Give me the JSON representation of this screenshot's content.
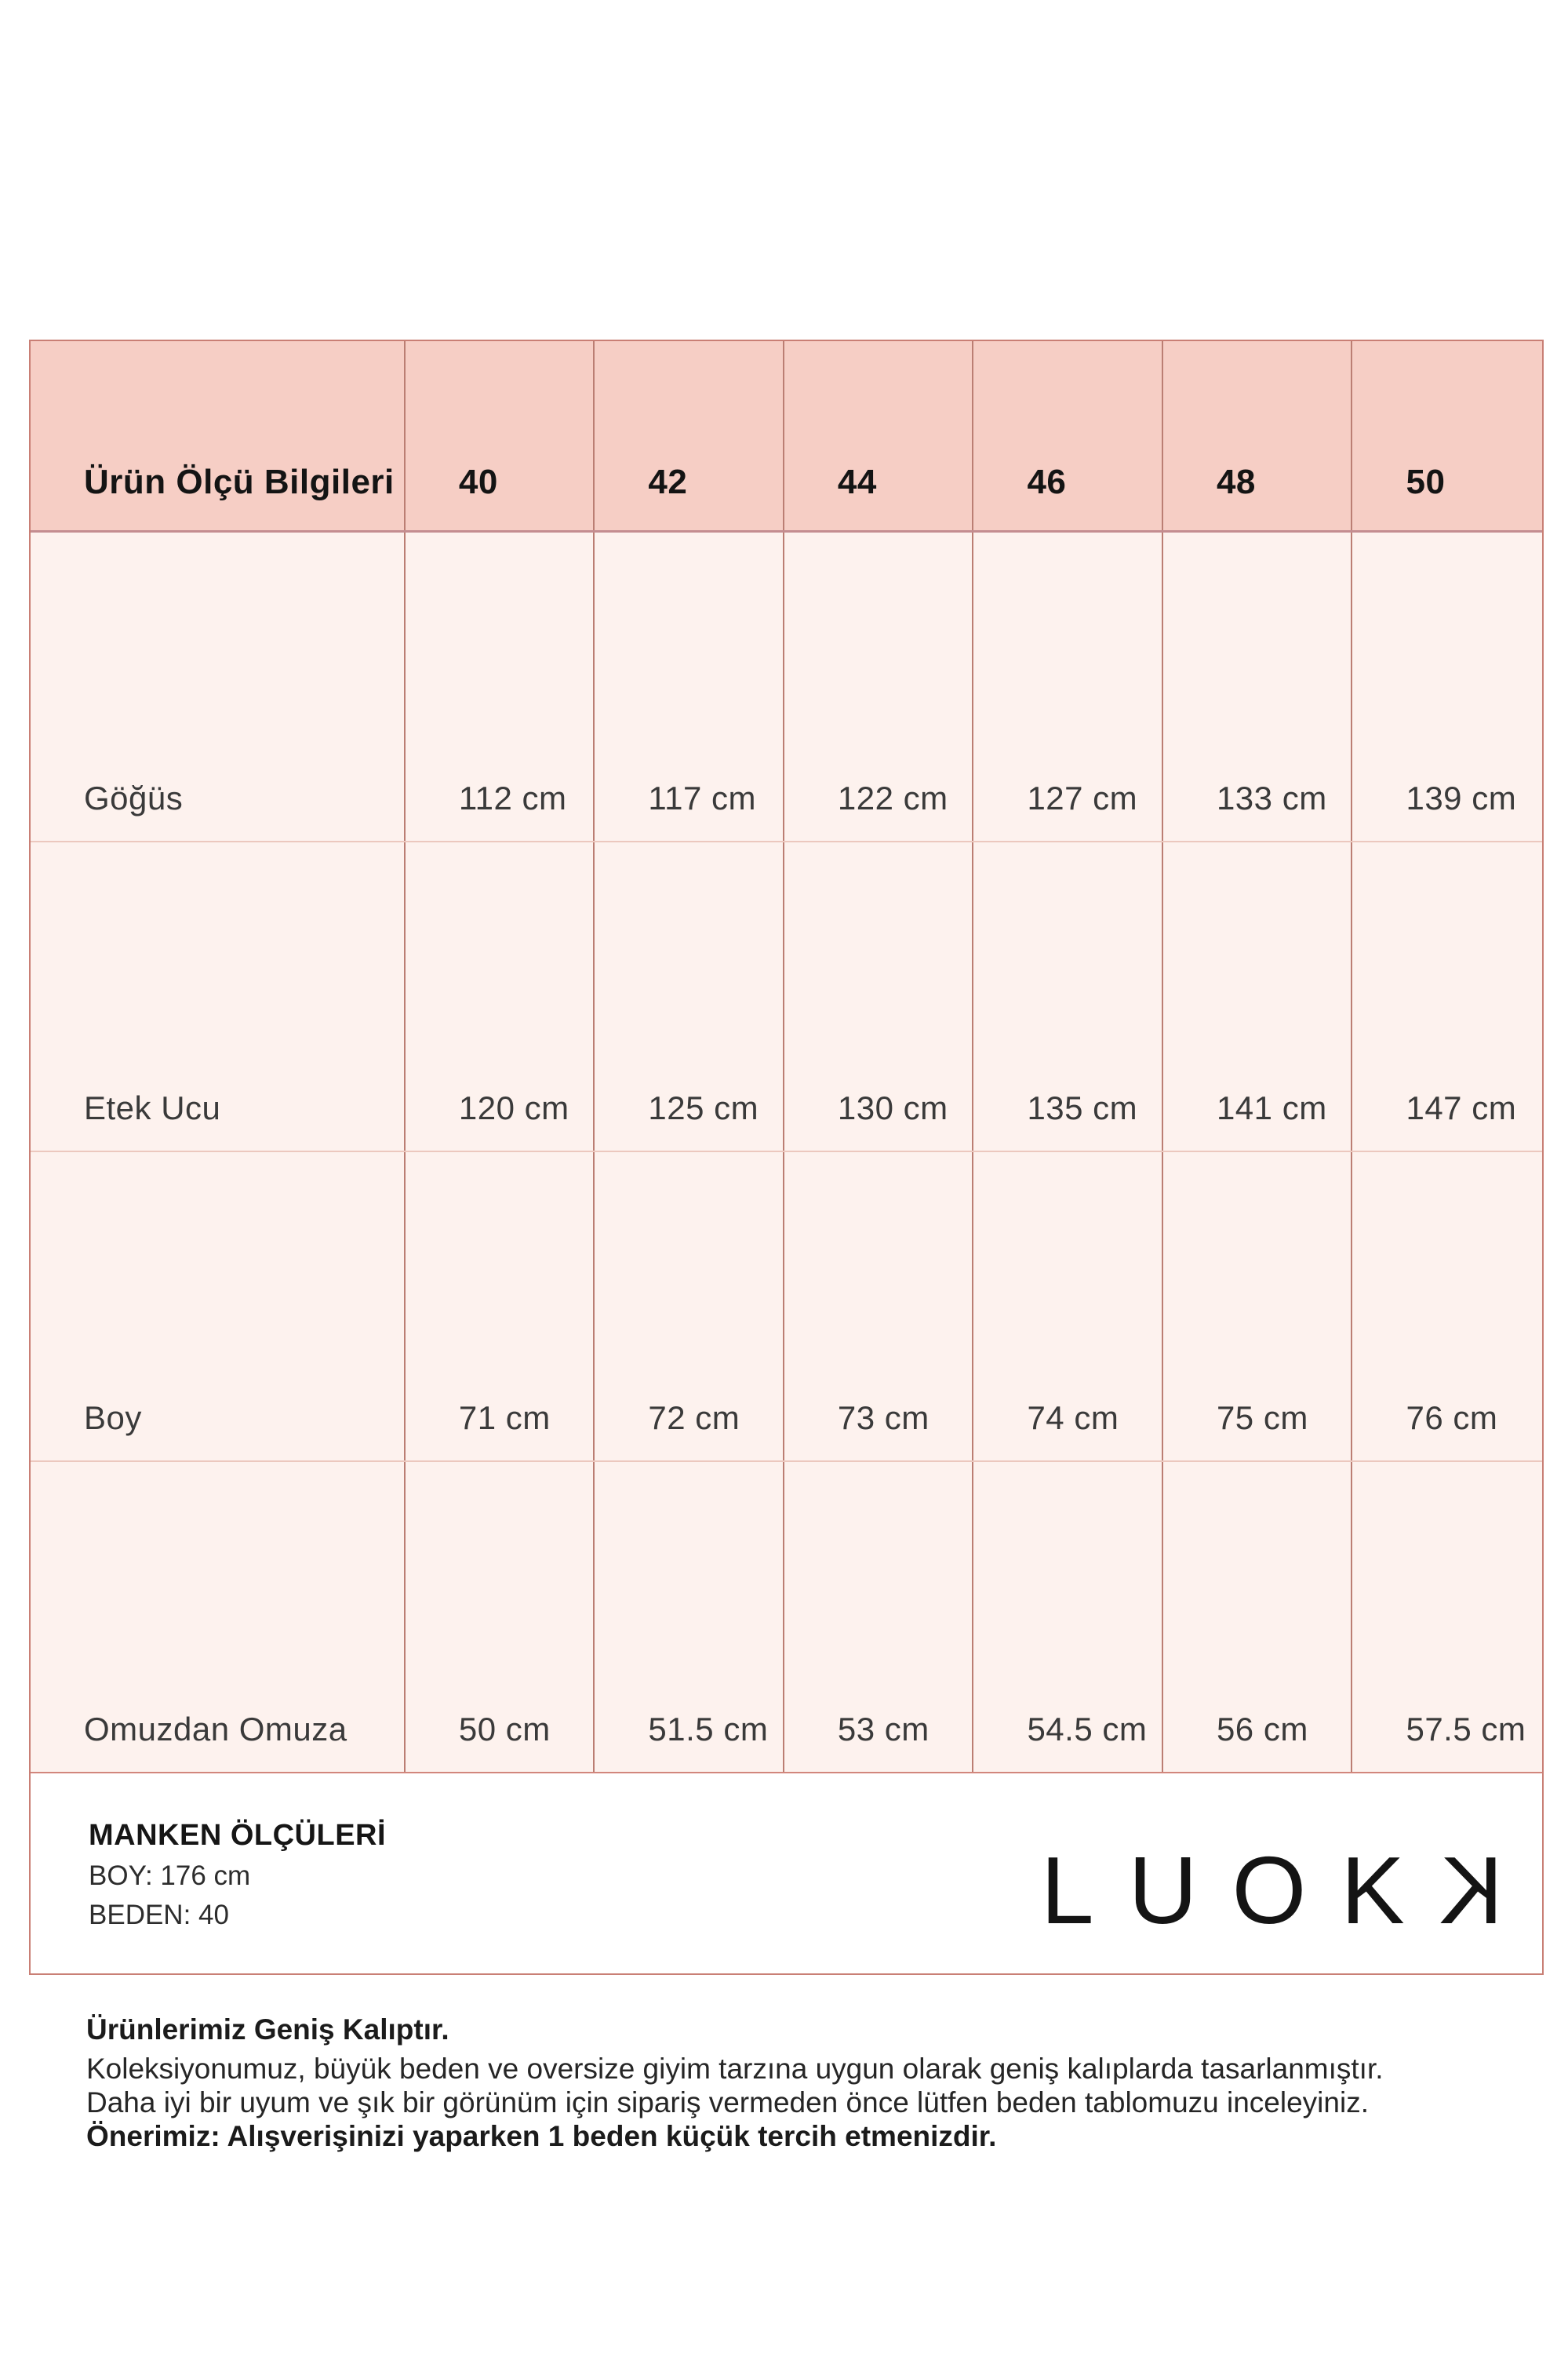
{
  "table": {
    "header": {
      "label": "Ürün Ölçü Bilgileri",
      "sizes": [
        "40",
        "42",
        "44",
        "46",
        "48",
        "50"
      ]
    },
    "rows": [
      {
        "label": "Göğüs",
        "values": [
          "112 cm",
          "117 cm",
          "122 cm",
          "127 cm",
          "133 cm",
          "139 cm"
        ]
      },
      {
        "label": "Etek Ucu",
        "values": [
          "120 cm",
          "125 cm",
          "130 cm",
          "135 cm",
          "141 cm",
          "147 cm"
        ]
      },
      {
        "label": "Boy",
        "values": [
          "71 cm",
          "72 cm",
          "73 cm",
          "74 cm",
          "75 cm",
          "76 cm"
        ]
      },
      {
        "label": "Omuzdan Omuza",
        "values": [
          "50 cm",
          "51.5 cm",
          "53 cm",
          "54.5 cm",
          "56 cm",
          "57.5 cm"
        ]
      }
    ]
  },
  "footer": {
    "title": "MANKEN ÖLÇÜLERİ",
    "model_height": "BOY: 176 cm",
    "model_size": "BEDEN: 40",
    "logo": {
      "text": "LUOK",
      "mirrored_letter": "K"
    }
  },
  "note": {
    "heading": "Ürünlerimiz Geniş Kalıptır.",
    "lines": [
      "Koleksiyonumuz, büyük beden ve oversize giyim tarzına uygun olarak geniş kalıplarda tasarlanmıştır.",
      "Daha iyi bir uyum ve şık bir görünüm için sipariş vermeden önce lütfen beden tablomuzu inceleyiniz.",
      "Önerimiz: Alışverişinizi yaparken 1 beden küçük tercih etmenizdir."
    ]
  },
  "colors": {
    "header_bg": "#f6cec5",
    "row_bg": "#fdf2ee",
    "outer_border": "#c97f75",
    "vertical_divider": "#bb7e73",
    "header_divider": "#c48d90",
    "row_divider": "#ecc8be",
    "text_dark": "#141414",
    "text_body": "#3a3a3a"
  }
}
